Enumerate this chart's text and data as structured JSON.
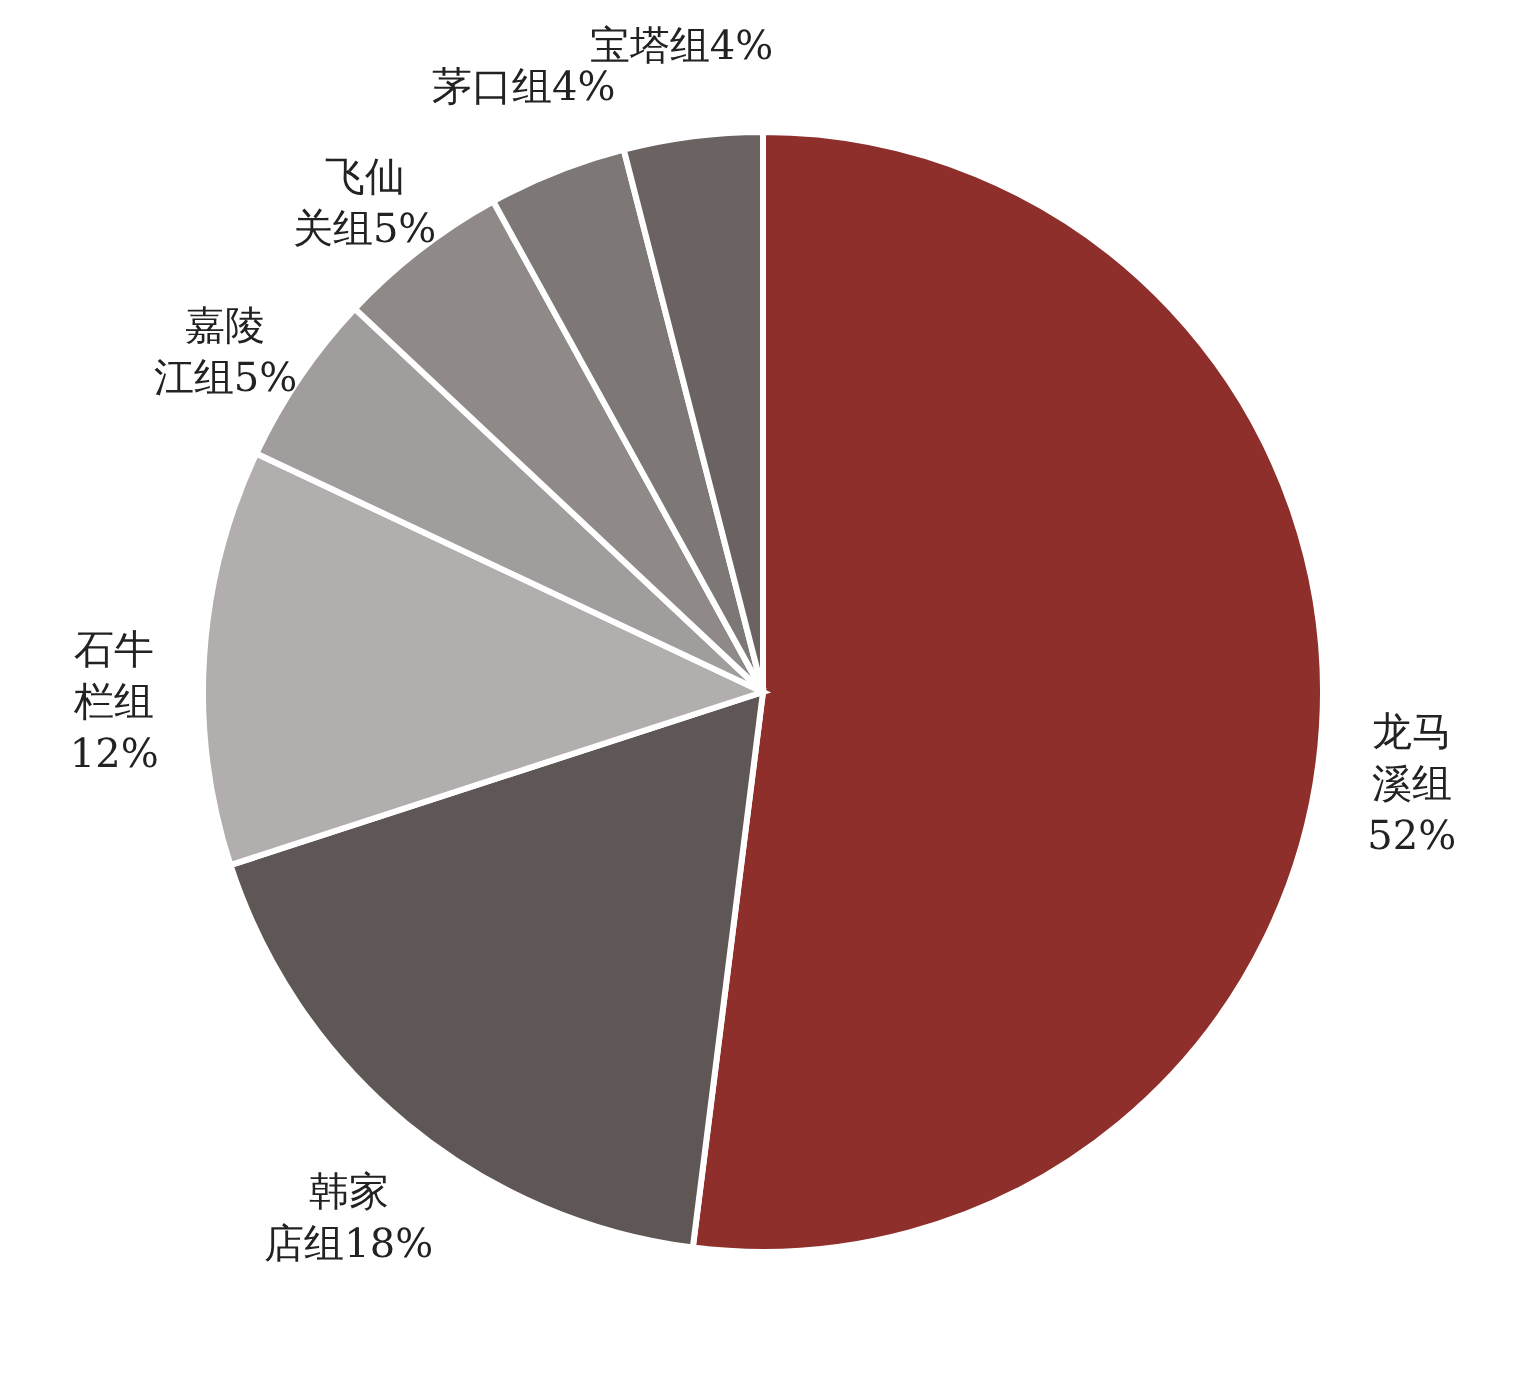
{
  "chart_data": {
    "type": "pie",
    "categories": [
      "龙马溪组",
      "韩家店组",
      "石牛栏组",
      "嘉陵江组",
      "飞仙关组",
      "茅口组",
      "宝塔组"
    ],
    "values": [
      52,
      18,
      12,
      5,
      5,
      4,
      4
    ],
    "value_labels": [
      "52%",
      "18%",
      "12%",
      "5%",
      "5%",
      "4%",
      "4%"
    ],
    "colors": [
      "#8f2f2b",
      "#5f5755",
      "#b3aeae",
      "#a29d9d",
      "#8f8988",
      "#7d7776",
      "#6b6362"
    ]
  }
}
